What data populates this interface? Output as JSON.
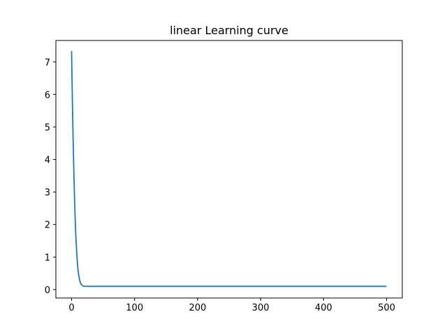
{
  "chart_data": {
    "type": "line",
    "title": "linear Learning curve",
    "xlabel": "",
    "ylabel": "",
    "xlim": [
      -24.95,
      524.95
    ],
    "ylim": [
      -0.26,
      7.66
    ],
    "xticks": [
      0,
      100,
      200,
      300,
      400,
      500
    ],
    "yticks": [
      0,
      1,
      2,
      3,
      4,
      5,
      6,
      7
    ],
    "grid": false,
    "legend": "none",
    "series": [
      {
        "color": "#1f77b4",
        "x": [
          0,
          1,
          2,
          3,
          4,
          5,
          6,
          7,
          8,
          9,
          10,
          11,
          12,
          13,
          14,
          15,
          16,
          17,
          18,
          19,
          20,
          22,
          25,
          30,
          40,
          50,
          100,
          150,
          200,
          250,
          300,
          350,
          400,
          450,
          499
        ],
        "y": [
          7.32,
          6.1,
          5.0,
          4.1,
          3.3,
          2.6,
          2.0,
          1.55,
          1.18,
          0.88,
          0.65,
          0.48,
          0.36,
          0.27,
          0.21,
          0.17,
          0.145,
          0.125,
          0.112,
          0.105,
          0.101,
          0.099,
          0.098,
          0.098,
          0.098,
          0.098,
          0.098,
          0.098,
          0.098,
          0.098,
          0.098,
          0.098,
          0.098,
          0.098,
          0.098
        ]
      }
    ]
  }
}
